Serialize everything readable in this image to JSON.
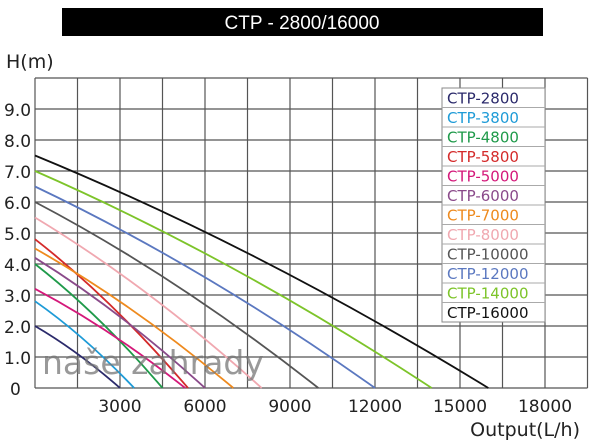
{
  "chart_data": {
    "type": "line",
    "title": "CTP - 2800/16000",
    "xlabel": "Output(L/h)",
    "ylabel": "H(m)",
    "xlim": [
      0,
      19500
    ],
    "ylim": [
      0,
      10
    ],
    "x_ticks": [
      "3000",
      "6000",
      "9000",
      "12000",
      "15000",
      "18000"
    ],
    "x_tick_values": [
      3000,
      6000,
      9000,
      12000,
      15000,
      18000
    ],
    "y_ticks": [
      "0",
      "1.0",
      "2.0",
      "3.0",
      "4.0",
      "5.0",
      "6.0",
      "7.0",
      "8.0",
      "9.0"
    ],
    "y_tick_values": [
      0,
      1,
      2,
      3,
      4,
      5,
      6,
      7,
      8,
      9
    ],
    "grid": true,
    "legend_position": "top-right",
    "watermark": "naše zahrady",
    "series": [
      {
        "name": "CTP-2800",
        "color": "#2b2a6b",
        "points": [
          [
            0,
            2.0
          ],
          [
            1500,
            1.1
          ],
          [
            3000,
            0
          ]
        ]
      },
      {
        "name": "CTP-3800",
        "color": "#1e9bd7",
        "points": [
          [
            0,
            2.8
          ],
          [
            1750,
            1.54
          ],
          [
            3500,
            0
          ]
        ]
      },
      {
        "name": "CTP-4800",
        "color": "#1f9a4a",
        "points": [
          [
            0,
            4.0
          ],
          [
            2250,
            2.2
          ],
          [
            4500,
            0
          ]
        ]
      },
      {
        "name": "CTP-5800",
        "color": "#d42a2a",
        "points": [
          [
            0,
            4.8
          ],
          [
            2700,
            2.64
          ],
          [
            5400,
            0
          ]
        ]
      },
      {
        "name": "CTP-5000",
        "color": "#d4197a",
        "points": [
          [
            0,
            3.2
          ],
          [
            2650,
            1.76
          ],
          [
            5300,
            0
          ]
        ]
      },
      {
        "name": "CTP-6000",
        "color": "#8a4a8a",
        "points": [
          [
            0,
            4.2
          ],
          [
            3000,
            2.3
          ],
          [
            6000,
            0
          ]
        ]
      },
      {
        "name": "CTP-7000",
        "color": "#ee8a1e",
        "points": [
          [
            0,
            4.5
          ],
          [
            3500,
            2.47
          ],
          [
            7000,
            0
          ]
        ]
      },
      {
        "name": "CTP-8000",
        "color": "#f0a8b0",
        "points": [
          [
            0,
            5.5
          ],
          [
            4000,
            3.02
          ],
          [
            8000,
            0
          ]
        ]
      },
      {
        "name": "CTP-10000",
        "color": "#555555",
        "points": [
          [
            0,
            6.0
          ],
          [
            5000,
            3.3
          ],
          [
            10000,
            0
          ]
        ]
      },
      {
        "name": "CTP-12000",
        "color": "#5b78c0",
        "points": [
          [
            0,
            6.5
          ],
          [
            6000,
            3.57
          ],
          [
            12000,
            0
          ]
        ]
      },
      {
        "name": "CTP-14000",
        "color": "#7dc42a",
        "points": [
          [
            0,
            7.0
          ],
          [
            7000,
            3.85
          ],
          [
            14000,
            0
          ]
        ]
      },
      {
        "name": "CTP-16000",
        "color": "#111111",
        "points": [
          [
            0,
            7.5
          ],
          [
            8000,
            4.12
          ],
          [
            16000,
            0
          ]
        ]
      }
    ]
  }
}
